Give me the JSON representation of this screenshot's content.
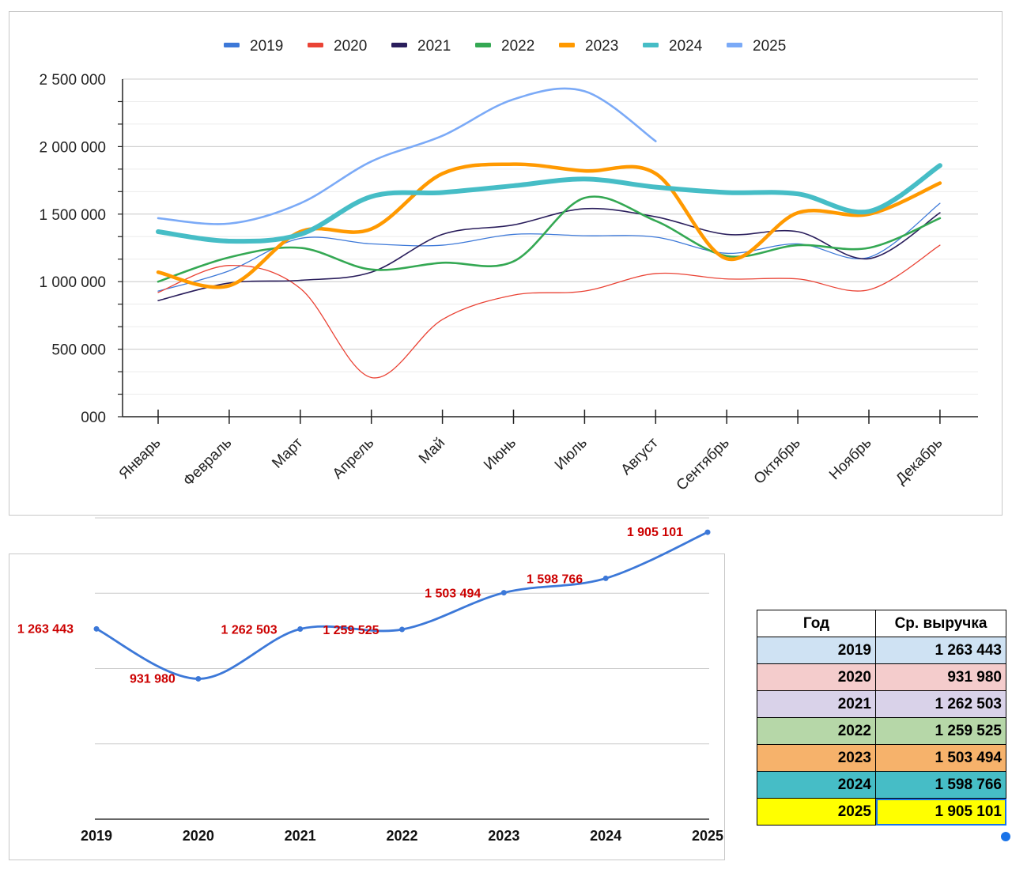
{
  "chart_data": [
    {
      "type": "line",
      "legend_position": "top",
      "grid": true,
      "ylim": [
        0,
        2500000
      ],
      "y_ticks": [
        {
          "value": 0,
          "label": "000"
        },
        {
          "value": 500000,
          "label": "500 000"
        },
        {
          "value": 1000000,
          "label": "1 000 000"
        },
        {
          "value": 1500000,
          "label": "1 500 000"
        },
        {
          "value": 2000000,
          "label": "2 000 000"
        },
        {
          "value": 2500000,
          "label": "2 500 000"
        }
      ],
      "categories": [
        "Январь",
        "Февраль",
        "Март",
        "Апрель",
        "Май",
        "Июнь",
        "Июль",
        "Август",
        "Сентябрь",
        "Октябрь",
        "Ноябрь",
        "Декабрь"
      ],
      "series": [
        {
          "name": "2019",
          "color": "#3c78d8",
          "width": 1.3,
          "values": [
            930000,
            1080000,
            1320000,
            1280000,
            1270000,
            1350000,
            1340000,
            1330000,
            1210000,
            1280000,
            1180000,
            1580000
          ]
        },
        {
          "name": "2020",
          "color": "#ea4335",
          "width": 1.3,
          "values": [
            920000,
            1120000,
            950000,
            290000,
            720000,
            900000,
            930000,
            1060000,
            1020000,
            1020000,
            940000,
            1270000
          ]
        },
        {
          "name": "2021",
          "color": "#2a1e5c",
          "width": 1.6,
          "values": [
            860000,
            990000,
            1010000,
            1070000,
            1350000,
            1420000,
            1540000,
            1480000,
            1350000,
            1370000,
            1170000,
            1510000
          ]
        },
        {
          "name": "2022",
          "color": "#34a853",
          "width": 2.6,
          "values": [
            1000000,
            1180000,
            1250000,
            1090000,
            1140000,
            1150000,
            1620000,
            1450000,
            1190000,
            1270000,
            1250000,
            1470000
          ]
        },
        {
          "name": "2023",
          "color": "#ff9900",
          "width": 4.5,
          "values": [
            1070000,
            970000,
            1370000,
            1390000,
            1800000,
            1870000,
            1820000,
            1800000,
            1170000,
            1510000,
            1500000,
            1730000
          ]
        },
        {
          "name": "2024",
          "color": "#46bdc6",
          "width": 6,
          "values": [
            1370000,
            1300000,
            1350000,
            1630000,
            1660000,
            1710000,
            1760000,
            1700000,
            1660000,
            1650000,
            1520000,
            1860000
          ]
        },
        {
          "name": "2025",
          "color": "#7baaf7",
          "width": 2.6,
          "values": [
            1470000,
            1430000,
            1580000,
            1890000,
            2080000,
            2350000,
            2410000,
            2040000,
            null,
            null,
            null,
            null
          ]
        }
      ]
    },
    {
      "type": "line",
      "grid": true,
      "color": "#3c78d8",
      "label_color": "#cc0000",
      "categories": [
        "2019",
        "2020",
        "2021",
        "2022",
        "2023",
        "2024",
        "2025"
      ],
      "values": [
        1263443,
        931980,
        1262503,
        1259525,
        1503494,
        1598766,
        1905101
      ],
      "data_labels": [
        "1 263 443",
        "931 980",
        "1 262 503",
        "1 259 525",
        "1 503 494",
        "1 598 766",
        "1 905 101"
      ],
      "ylim": [
        0,
        2000000
      ]
    }
  ],
  "table": {
    "headers": [
      "Год",
      "Ср. выручка"
    ],
    "rows": [
      {
        "year": "2019",
        "value": "1 263 443",
        "color": "#cfe2f3"
      },
      {
        "year": "2020",
        "value": "931 980",
        "color": "#f4cccc"
      },
      {
        "year": "2021",
        "value": "1 262 503",
        "color": "#d9d2e9"
      },
      {
        "year": "2022",
        "value": "1 259 525",
        "color": "#b6d7a8"
      },
      {
        "year": "2023",
        "value": "1 503 494",
        "color": "#f6b26b"
      },
      {
        "year": "2024",
        "value": "1 598 766",
        "color": "#46bdc6"
      },
      {
        "year": "2025",
        "value": "1 905 101",
        "color": "#ffff00"
      }
    ]
  }
}
